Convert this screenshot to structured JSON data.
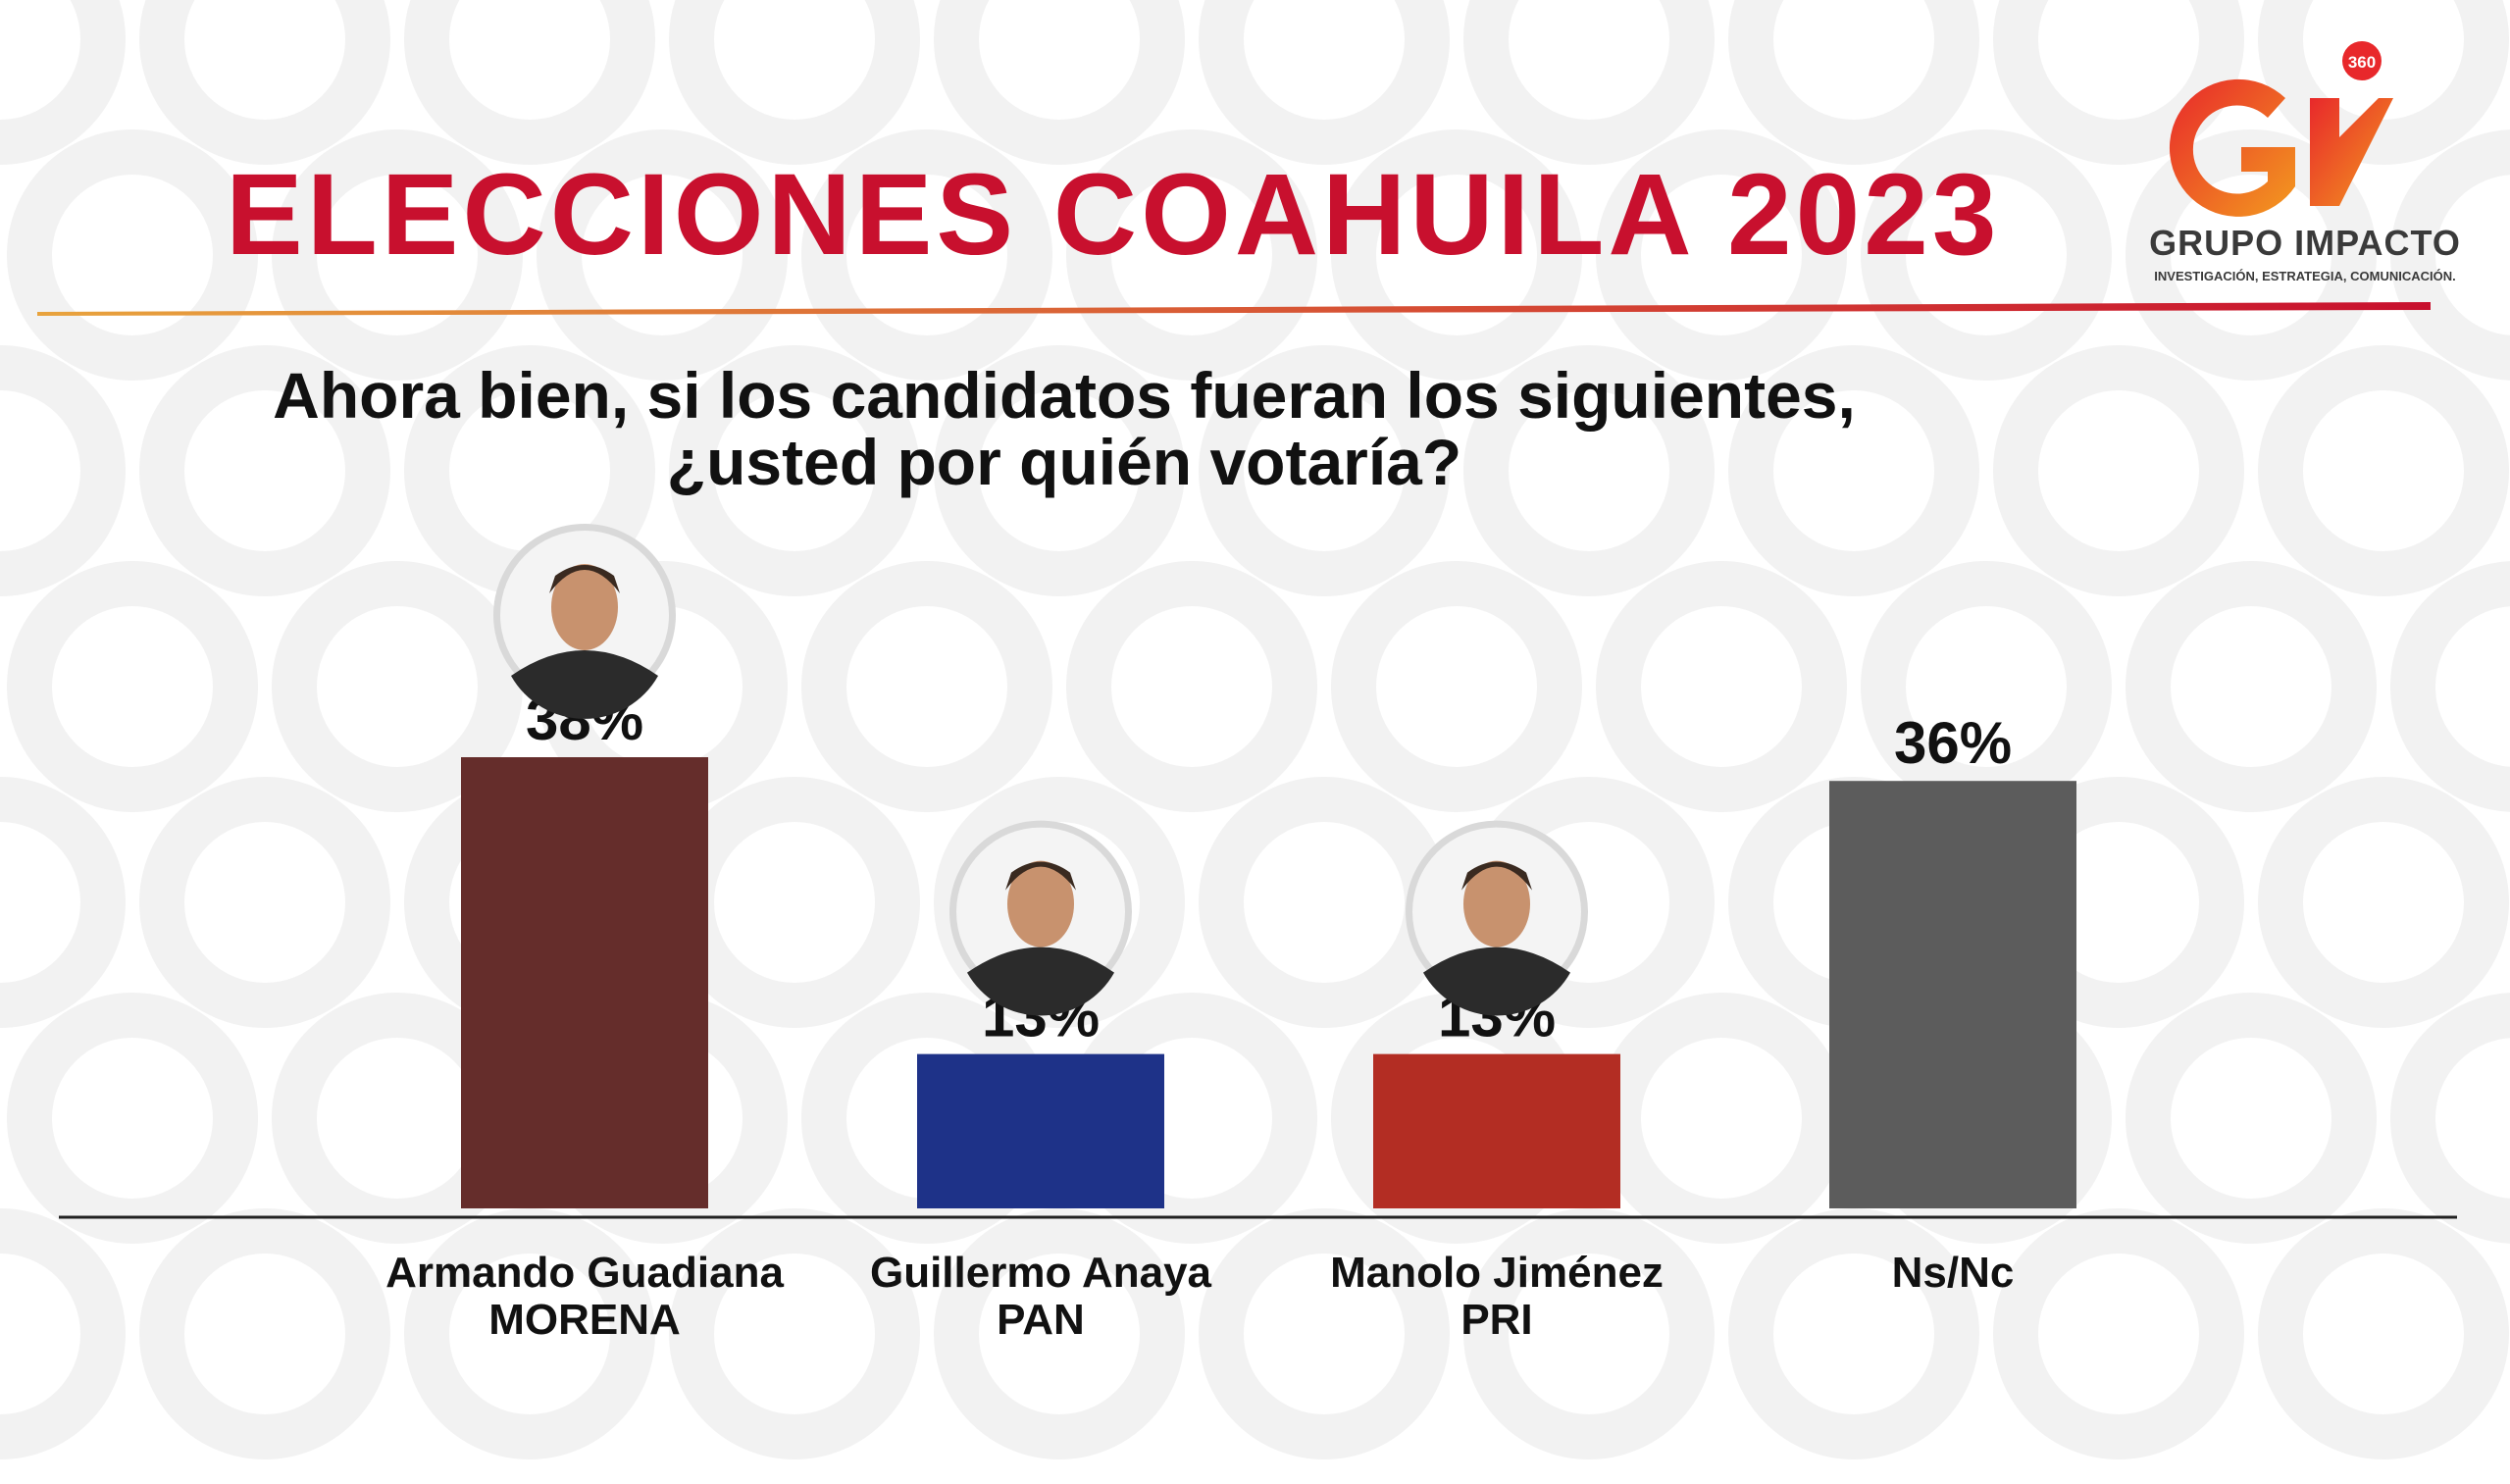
{
  "title": "ELECCIONES COAHUILA 2023",
  "question": {
    "line1": "Ahora bien, si los candidatos fueran los siguientes,",
    "line2": "¿usted por quién votaría?"
  },
  "logo": {
    "mark_letters": "GI",
    "badge": "360",
    "name": "GRUPO IMPACTO",
    "tagline": "INVESTIGACIÓN, ESTRATEGIA, COMUNICACIÓN."
  },
  "colors": {
    "title_red": "#c8102e",
    "morena": "#652d2b",
    "pan": "#1e3288",
    "pri": "#b32d23",
    "nsnc": "#5c5c5c",
    "rule_start": "#e8a33d",
    "rule_end": "#c8102e"
  },
  "chart_data": {
    "type": "bar",
    "categories": [
      {
        "name": "Armando Guadiana",
        "party": "MORENA",
        "photo": "candidate-photo"
      },
      {
        "name": "Guillermo Anaya",
        "party": "PAN",
        "photo": "candidate-photo"
      },
      {
        "name": "Manolo Jiménez",
        "party": "PRI",
        "photo": "candidate-photo"
      },
      {
        "name": "Ns/Nc",
        "party": "",
        "photo": ""
      }
    ],
    "values": [
      38,
      13,
      13,
      36
    ],
    "value_labels": [
      "38%",
      "13%",
      "13%",
      "36%"
    ],
    "unit": "%",
    "ylim": [
      0,
      38
    ],
    "grid": false,
    "legend": "none"
  }
}
